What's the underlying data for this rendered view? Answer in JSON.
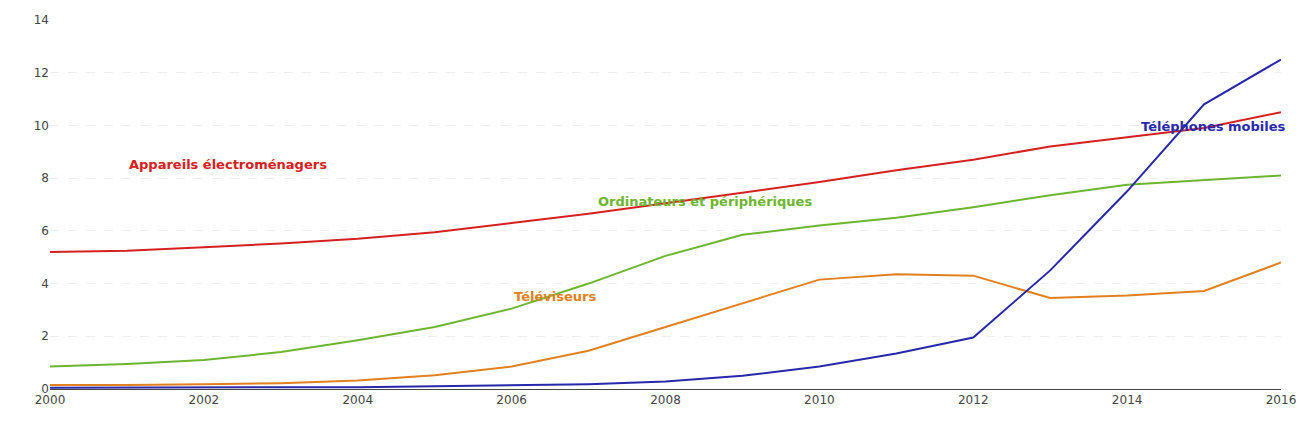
{
  "chart_data": {
    "type": "line",
    "x": [
      2000,
      2001,
      2002,
      2003,
      2004,
      2005,
      2006,
      2007,
      2008,
      2009,
      2010,
      2011,
      2012,
      2013,
      2014,
      2015,
      2016
    ],
    "series": [
      {
        "color": "#d42020",
        "values": [
          5.2,
          5.25,
          5.38,
          5.52,
          5.7,
          5.95,
          6.3,
          6.65,
          7.05,
          7.45,
          7.85,
          8.3,
          8.7,
          9.2,
          9.55,
          9.9,
          10.5
        ]
      },
      {
        "color": "#6db530",
        "values": [
          0.85,
          0.95,
          1.1,
          1.4,
          1.85,
          2.35,
          3.05,
          4.0,
          5.05,
          5.85,
          6.2,
          6.5,
          6.9,
          7.35,
          7.75,
          7.92,
          8.1
        ]
      },
      {
        "color": "#e08020",
        "values": [
          0.15,
          0.15,
          0.18,
          0.22,
          0.32,
          0.52,
          0.85,
          1.45,
          2.35,
          3.25,
          4.15,
          4.35,
          4.3,
          3.45,
          3.55,
          3.72,
          4.8
        ]
      },
      {
        "color": "#2828aa",
        "values": [
          0.05,
          0.05,
          0.05,
          0.06,
          0.07,
          0.1,
          0.13,
          0.18,
          0.28,
          0.5,
          0.85,
          1.35,
          1.95,
          4.5,
          7.5,
          10.8,
          12.5
        ]
      }
    ],
    "annotations": [
      {
        "text": "Appareils électroménagers",
        "x": 2001.0,
        "y": 8.15,
        "color": "#d42020"
      },
      {
        "text": "Ordinateurs et périphériques",
        "x": 2007.1,
        "y": 6.75,
        "color": "#6db530"
      },
      {
        "text": "Téléviseurs",
        "x": 2006.0,
        "y": 3.15,
        "color": "#e08020"
      },
      {
        "text": "Téléphones mobiles",
        "x": 2014.15,
        "y": 9.6,
        "color": "#2828aa"
      }
    ],
    "xlim": [
      2000,
      2016
    ],
    "xticks": [
      2000,
      2002,
      2004,
      2006,
      2008,
      2010,
      2012,
      2014,
      2016
    ],
    "ylim": [
      0,
      14
    ],
    "yticks": [
      0,
      2,
      4,
      6,
      8,
      10,
      12,
      14
    ],
    "grid": true
  }
}
